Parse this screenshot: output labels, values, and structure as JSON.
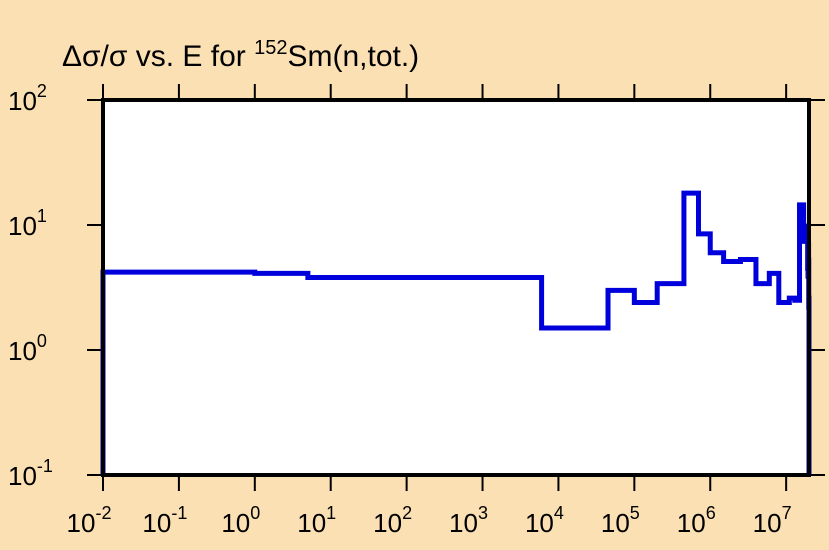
{
  "chart_data": {
    "type": "line",
    "step": true,
    "title": {
      "prefix": "Δσ/σ vs. E for ",
      "superscript": "152",
      "suffix": "Sm(n,tot.)"
    },
    "xlabel": "",
    "ylabel": "",
    "x_scale": "log",
    "y_scale": "log",
    "xlim": [
      0.01,
      20000000
    ],
    "ylim": [
      0.1,
      100
    ],
    "x_ticks": [
      {
        "base": "10",
        "exp": "-2",
        "value": 0.01
      },
      {
        "base": "10",
        "exp": "-1",
        "value": 0.1
      },
      {
        "base": "10",
        "exp": "0",
        "value": 1
      },
      {
        "base": "10",
        "exp": "1",
        "value": 10
      },
      {
        "base": "10",
        "exp": "2",
        "value": 100
      },
      {
        "base": "10",
        "exp": "3",
        "value": 1000
      },
      {
        "base": "10",
        "exp": "4",
        "value": 10000
      },
      {
        "base": "10",
        "exp": "5",
        "value": 100000
      },
      {
        "base": "10",
        "exp": "6",
        "value": 1000000
      },
      {
        "base": "10",
        "exp": "7",
        "value": 10000000
      }
    ],
    "y_ticks": [
      {
        "base": "10",
        "exp": "-1",
        "value": 0.1
      },
      {
        "base": "10",
        "exp": "0",
        "value": 1
      },
      {
        "base": "10",
        "exp": "1",
        "value": 10
      },
      {
        "base": "10",
        "exp": "2",
        "value": 100
      }
    ],
    "grid": false,
    "series": [
      {
        "color": "#0000dd",
        "steps": [
          {
            "x0": 0.01,
            "x1": 1,
            "y": 4.2
          },
          {
            "x0": 1,
            "x1": 5,
            "y": 4.1
          },
          {
            "x0": 5,
            "x1": 6000,
            "y": 3.8
          },
          {
            "x0": 6000,
            "x1": 45000,
            "y": 1.5
          },
          {
            "x0": 45000,
            "x1": 100000,
            "y": 3.0
          },
          {
            "x0": 100000,
            "x1": 200000,
            "y": 2.4
          },
          {
            "x0": 200000,
            "x1": 450000,
            "y": 3.4
          },
          {
            "x0": 450000,
            "x1": 700000,
            "y": 18.0
          },
          {
            "x0": 700000,
            "x1": 1000000,
            "y": 8.5
          },
          {
            "x0": 1000000,
            "x1": 1500000,
            "y": 6.0
          },
          {
            "x0": 1500000,
            "x1": 2500000,
            "y": 5.1
          },
          {
            "x0": 2500000,
            "x1": 4000000,
            "y": 5.3
          },
          {
            "x0": 4000000,
            "x1": 6000000,
            "y": 3.4
          },
          {
            "x0": 6000000,
            "x1": 8000000,
            "y": 4.1
          },
          {
            "x0": 8000000,
            "x1": 11000000,
            "y": 2.4
          },
          {
            "x0": 11000000,
            "x1": 13000000,
            "y": 2.6
          },
          {
            "x0": 13000000,
            "x1": 15000000,
            "y": 2.5
          },
          {
            "x0": 15000000,
            "x1": 17000000,
            "y": 14.5
          },
          {
            "x0": 17000000,
            "x1": 17700000,
            "y": 7.4
          },
          {
            "x0": 17700000,
            "x1": 18300000,
            "y": 9.8
          },
          {
            "x0": 18300000,
            "x1": 18700000,
            "y": 9.6
          },
          {
            "x0": 18700000,
            "x1": 19000000,
            "y": 7.8
          },
          {
            "x0": 19000000,
            "x1": 19200000,
            "y": 7.4
          },
          {
            "x0": 19200000,
            "x1": 19400000,
            "y": 4.5
          },
          {
            "x0": 19400000,
            "x1": 19550000,
            "y": 3.9
          },
          {
            "x0": 19550000,
            "x1": 19650000,
            "y": 6.6
          },
          {
            "x0": 19650000,
            "x1": 19750000,
            "y": 7.0
          },
          {
            "x0": 19750000,
            "x1": 19850000,
            "y": 5.2
          },
          {
            "x0": 19850000,
            "x1": 19930000,
            "y": 2.2
          },
          {
            "x0": 19930000,
            "x1": 20000000,
            "y": 2.6
          }
        ]
      }
    ]
  }
}
